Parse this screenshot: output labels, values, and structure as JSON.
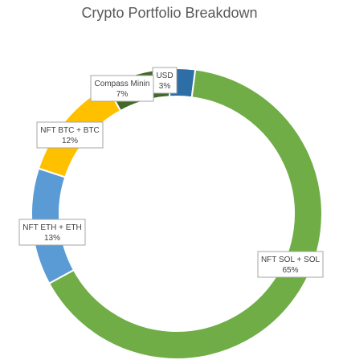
{
  "chart_data": {
    "type": "pie",
    "variant": "donut",
    "title": "Crypto Portfolio Breakdown",
    "slices": [
      {
        "name": "USD",
        "label": "USD",
        "pct_label": "3%",
        "value": 3,
        "color": "#2e6ea6"
      },
      {
        "name": "NFT SOL + SOL",
        "label": "NFT SOL + SOL",
        "pct_label": "65%",
        "value": 65,
        "color": "#70ad47"
      },
      {
        "name": "NFT ETH + ETH",
        "label": "NFT ETH + ETH",
        "pct_label": "13%",
        "value": 13,
        "color": "#5b9bd5"
      },
      {
        "name": "NFT BTC + BTC",
        "label": "NFT BTC + BTC",
        "pct_label": "12%",
        "value": 12,
        "color": "#ffc000"
      },
      {
        "name": "Compass Mining",
        "label": "Compass Minin",
        "pct_label": "7%",
        "value": 7,
        "color": "#43682b"
      }
    ]
  }
}
